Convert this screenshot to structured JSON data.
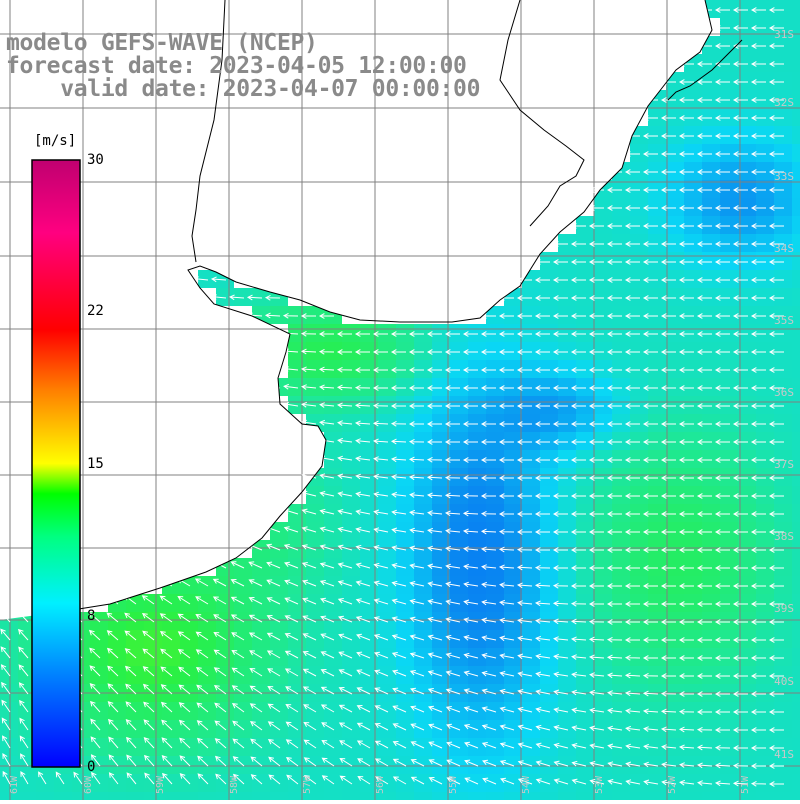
{
  "title": {
    "line1": "modelo GEFS-WAVE (NCEP)",
    "line2": "forecast date: 2023-04-05 12:00:00",
    "line3": "    valid date: 2023-04-07 00:00:00"
  },
  "colorbar": {
    "unit": "[m/s]",
    "ticks": [
      "30",
      "22",
      "15",
      "8",
      "0"
    ],
    "tick_values": [
      30,
      22,
      15,
      8,
      0
    ],
    "min": 0,
    "max": 30,
    "colors": [
      "#0000ff",
      "#0080ff",
      "#00e5ff",
      "#00ff80",
      "#00ff00",
      "#aaff00",
      "#ffff00",
      "#ff8000",
      "#ff0000",
      "#ff0090",
      "#b00070"
    ]
  },
  "lat_labels": [
    "31S",
    "32S",
    "33S",
    "34S",
    "35S",
    "36S",
    "37S",
    "38S",
    "39S",
    "40S",
    "41S"
  ],
  "lon_labels": [
    "61W",
    "60W",
    "59W",
    "58W",
    "57W",
    "56W",
    "55W",
    "54W",
    "53W",
    "52W",
    "51W"
  ],
  "map": {
    "ocean_colors": {
      "blue": "#0a82f0",
      "cyan": "#0ad7f5",
      "green": "#22e86e",
      "bright_green": "#28f045"
    },
    "land_color": "#ffffff",
    "coast_color": "#000000",
    "grid_color": "#808080",
    "arrow_color": "#ffffff"
  }
}
